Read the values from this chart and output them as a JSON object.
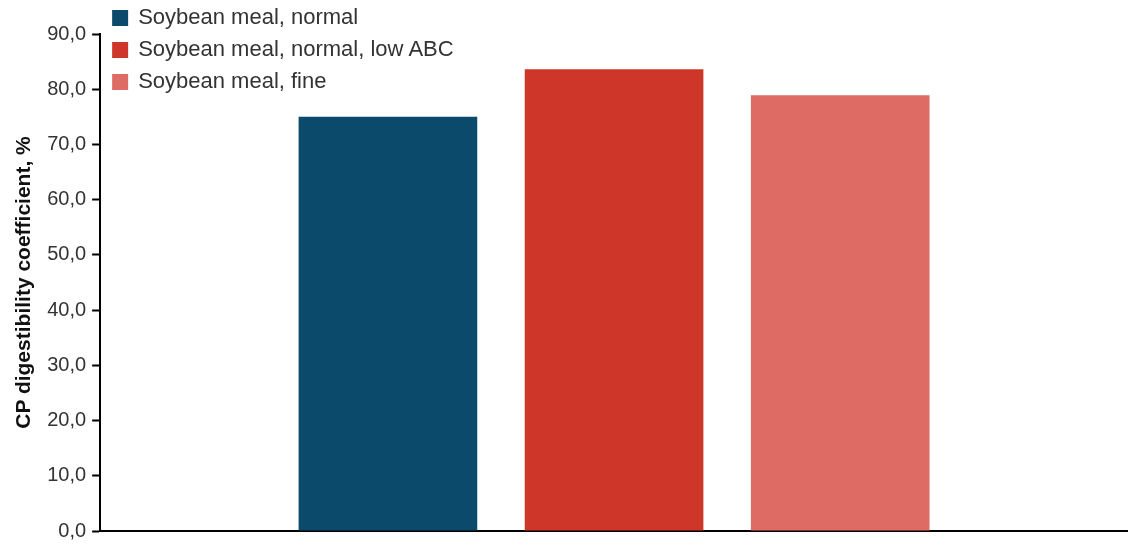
{
  "chart_data": {
    "type": "bar",
    "ylabel": "CP digestibility coefficient, %",
    "categories": [
      null
    ],
    "series": [
      {
        "name": "Soybean meal, normal",
        "color": "#0b4a6a",
        "values": [
          75.0
        ]
      },
      {
        "name": "Soybean meal, normal, low ABC",
        "color": "#cd3628",
        "values": [
          83.6
        ]
      },
      {
        "name": "Soybean meal, fine",
        "color": "#df6b65",
        "values": [
          78.9
        ]
      }
    ],
    "ylim": [
      0,
      90
    ],
    "yticks": [
      {
        "value": 0,
        "label": "0,0"
      },
      {
        "value": 10,
        "label": "10,0"
      },
      {
        "value": 20,
        "label": "20,0"
      },
      {
        "value": 30,
        "label": "30,0"
      },
      {
        "value": 40,
        "label": "40,0"
      },
      {
        "value": 50,
        "label": "50,0"
      },
      {
        "value": 60,
        "label": "60,0"
      },
      {
        "value": 70,
        "label": "70,0"
      },
      {
        "value": 80,
        "label": "80,0"
      },
      {
        "value": 90,
        "label": "90,0"
      }
    ],
    "grid": false,
    "legend": "top left"
  }
}
